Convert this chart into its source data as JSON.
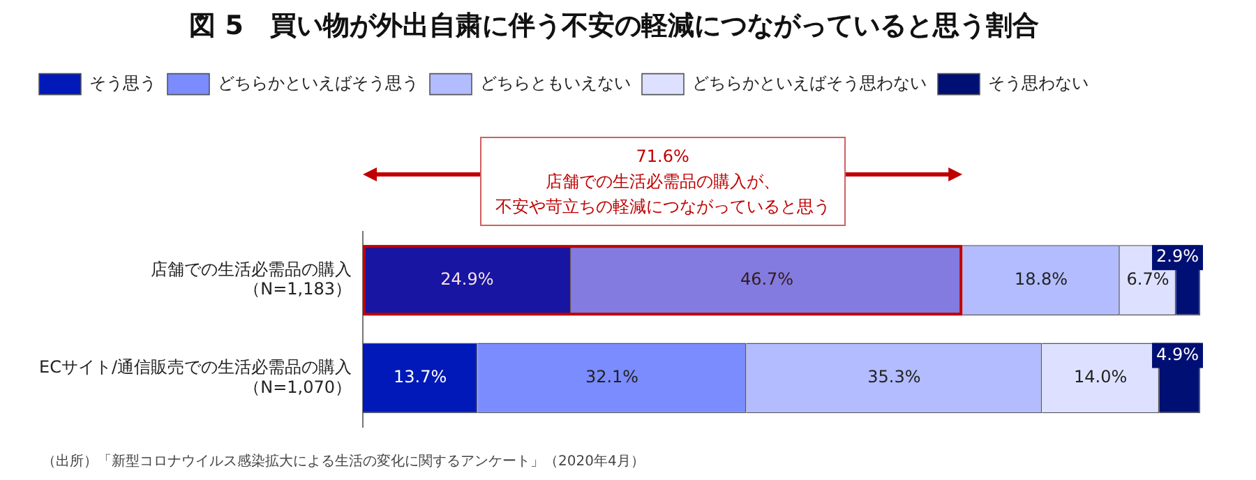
{
  "chart_data": {
    "type": "bar",
    "orientation": "horizontal",
    "stacked": true,
    "title": "図 5　買い物が外出自粛に伴う不安の軽減につながっていると思う割合",
    "categories": [
      "店舗での生活必需品の購入（N=1,183）",
      "ECサイト/通信販売での生活必需品の購入（N=1,070）"
    ],
    "series": [
      {
        "name": "そう思う",
        "color": "#0019b8",
        "values": [
          24.9,
          13.7
        ],
        "value_labels": [
          "24.9%",
          "13.7%"
        ]
      },
      {
        "name": "どちらかといえばそう思う",
        "color": "#7b8cff",
        "values": [
          46.7,
          32.1
        ],
        "value_labels": [
          "46.7%",
          "32.1%"
        ]
      },
      {
        "name": "どちらともいえない",
        "color": "#b3bcff",
        "values": [
          18.8,
          35.3
        ],
        "value_labels": [
          "18.8%",
          "35.3%"
        ]
      },
      {
        "name": "どちらかといえばそう思わない",
        "color": "#dde1ff",
        "values": [
          6.7,
          14.0
        ],
        "value_labels": [
          "6.7%",
          "14.0%"
        ]
      },
      {
        "name": "そう思わない",
        "color": "#000f73",
        "values": [
          2.9,
          4.9
        ],
        "value_labels": [
          "2.9%",
          "4.9%"
        ]
      }
    ],
    "xlim": [
      0,
      100
    ],
    "tick_labels": "y",
    "legend": "top left",
    "bands": [
      {
        "axis": "x",
        "from": 0,
        "to": 71.6,
        "color": "#c00000",
        "label": "71.6%店舗での生活必需品の購入が、不安や苛立ちの軽減につながっていると思う"
      }
    ],
    "annotations": [
      "（出所）「新型コロナウイルス感染拡大による生活の変化に関するアンケート」（2020年4月）"
    ]
  }
}
